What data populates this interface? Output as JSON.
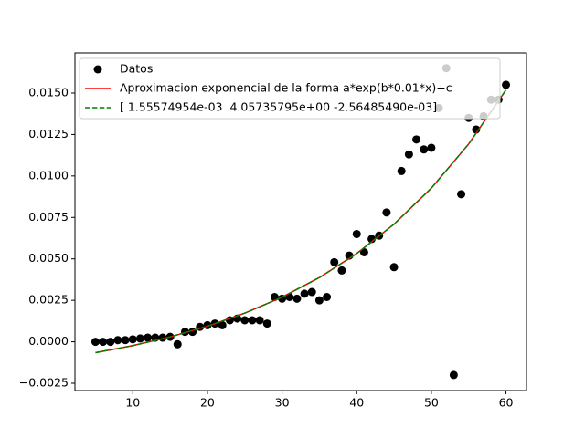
{
  "chart_data": {
    "type": "scatter",
    "xlim": [
      2.25,
      62.75
    ],
    "ylim": [
      -0.00294,
      0.01742
    ],
    "xticks": [
      10,
      20,
      30,
      40,
      50,
      60
    ],
    "yticks": [
      {
        "value": -0.0025,
        "label": "−0.0025"
      },
      {
        "value": 0,
        "label": "0.0000"
      },
      {
        "value": 0.0025,
        "label": "0.0025"
      },
      {
        "value": 0.005,
        "label": "0.0050"
      },
      {
        "value": 0.0075,
        "label": "0.0075"
      },
      {
        "value": 0.01,
        "label": "0.0100"
      },
      {
        "value": 0.0125,
        "label": "0.0125"
      },
      {
        "value": 0.015,
        "label": "0.0150"
      }
    ],
    "legend": "upper left",
    "series": [
      {
        "name": "Datos",
        "color": "#000000",
        "mode": "markers",
        "x": [
          5,
          6,
          7,
          8,
          9,
          10,
          11,
          12,
          13,
          14,
          15,
          16,
          17,
          18,
          19,
          20,
          21,
          22,
          23,
          24,
          25,
          26,
          27,
          28,
          29,
          30,
          31,
          32,
          33,
          34,
          35,
          36,
          37,
          38,
          39,
          40,
          41,
          42,
          43,
          44,
          45,
          46,
          47,
          48,
          49,
          50,
          51,
          52,
          53,
          54,
          55,
          56,
          57,
          58,
          59,
          60
        ],
        "values": [
          0,
          0,
          0,
          0.0001,
          0.0001,
          0.00015,
          0.0002,
          0.00025,
          0.00025,
          0.00025,
          0.0003,
          -0.00015,
          0.0006,
          0.0006,
          0.0009,
          0.001,
          0.0011,
          0.001,
          0.0013,
          0.0014,
          0.0013,
          0.0013,
          0.0013,
          0.0011,
          0.0027,
          0.0026,
          0.0027,
          0.0026,
          0.0029,
          0.003,
          0.0025,
          0.0027,
          0.0048,
          0.0043,
          0.0052,
          0.0065,
          0.0054,
          0.0062,
          0.0064,
          0.0078,
          0.0045,
          0.0103,
          0.0113,
          0.0122,
          0.0116,
          0.0117,
          0.0141,
          0.0165,
          -0.002,
          0.0089,
          0.0135,
          0.0128,
          0.0136,
          0.0146,
          0.0146,
          0.0155
        ]
      },
      {
        "name": "Aproximacion exponencial de la forma a*exp(b*0.01*x)+c",
        "color": "#ff0000",
        "mode": "line",
        "x": [
          5,
          10,
          15,
          20,
          25,
          30,
          35,
          40,
          45,
          50,
          55,
          60
        ],
        "values": [
          -0.000659,
          -0.000231,
          0.000295,
          0.000937,
          0.001725,
          0.00269,
          0.003872,
          0.00532,
          0.007093,
          0.009265,
          0.011926,
          0.015185
        ]
      },
      {
        "name": "[ 1.55574954e-03  4.05735795e+00 -2.56485490e-03]",
        "color": "#008000",
        "mode": "dashed",
        "x": [
          5,
          10,
          15,
          20,
          25,
          30,
          35,
          40,
          45,
          50,
          55,
          60
        ],
        "values": [
          -0.000659,
          -0.000231,
          0.000295,
          0.000937,
          0.001725,
          0.00269,
          0.003872,
          0.00532,
          0.007093,
          0.009265,
          0.011926,
          0.015185
        ]
      }
    ]
  }
}
